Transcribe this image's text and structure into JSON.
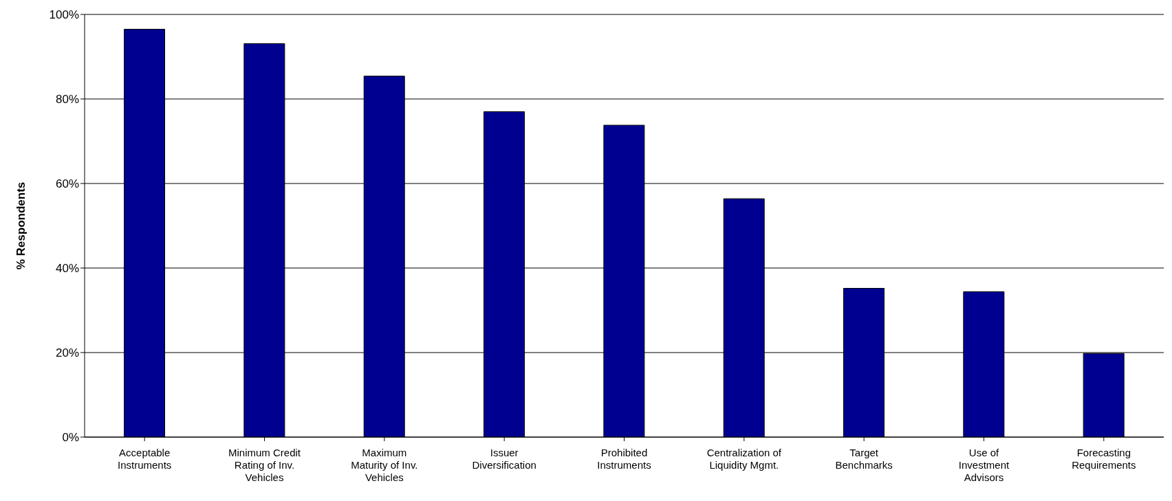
{
  "chart_data": {
    "type": "bar",
    "ylabel": "% Respondents",
    "categories": [
      "Acceptable Instruments",
      "Minimum Credit Rating of Inv. Vehicles",
      "Maximum Maturity of Inv. Vehicles",
      "Issuer Diversification",
      "Prohibited Instruments",
      "Centralization of Liquidity Mgmt.",
      "Target Benchmarks",
      "Use of Investment Advisors",
      "Forecasting Requirements"
    ],
    "values": [
      96.5,
      93.1,
      85.4,
      77.0,
      73.8,
      56.4,
      35.2,
      34.4,
      19.8
    ],
    "color": "#000090",
    "ylim": [
      0,
      100
    ],
    "yticks": [
      {
        "value": 0,
        "label": "0%"
      },
      {
        "value": 20,
        "label": "20%"
      },
      {
        "value": 40,
        "label": "40%"
      },
      {
        "value": 60,
        "label": "60%"
      },
      {
        "value": 80,
        "label": "80%"
      },
      {
        "value": 100,
        "label": "100%"
      }
    ],
    "grid": "y",
    "legend": false
  }
}
